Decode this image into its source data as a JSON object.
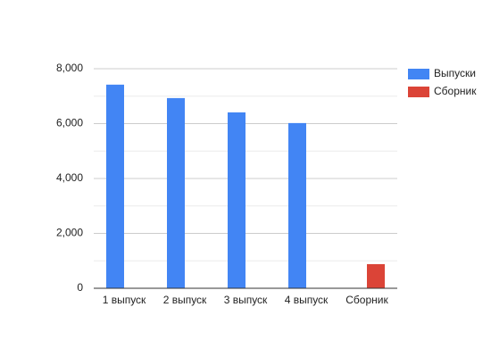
{
  "chart_data": {
    "type": "bar",
    "categories": [
      "1 выпуск",
      "2 выпуск",
      "3 выпуск",
      "4 выпуск",
      "Сборник"
    ],
    "series": [
      {
        "name": "Выпуски",
        "color": "#4285f4",
        "values": [
          7420,
          6930,
          6410,
          6020,
          null
        ]
      },
      {
        "name": "Сборник",
        "color": "#db4437",
        "values": [
          null,
          null,
          null,
          null,
          880
        ]
      }
    ],
    "ylim": [
      0,
      8000
    ],
    "yticks": [
      0,
      {
        "value": 2000,
        "label": "2,000"
      },
      {
        "value": 4000,
        "label": "4,000"
      },
      {
        "value": 6000,
        "label": "6,000"
      },
      {
        "value": 8000,
        "label": "8,000"
      }
    ],
    "minor_yticks": [
      1000,
      3000,
      5000,
      7000
    ],
    "grid": true,
    "legend": "right"
  }
}
